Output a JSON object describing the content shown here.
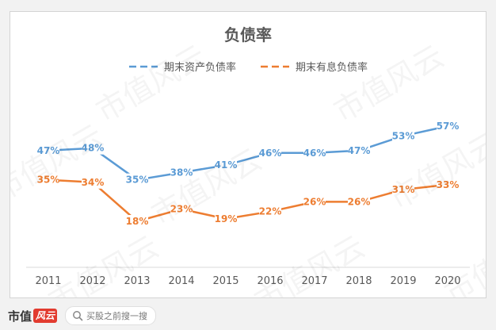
{
  "watermark": "市值风云",
  "footer": {
    "brand": "市值",
    "brand_mark": "风云",
    "search_placeholder": "买股之前搜一搜"
  },
  "colors": {
    "series1": "#5b9bd5",
    "series2": "#ed7d31",
    "title": "#595959",
    "axis_text": "#595959",
    "axis_line": "#d9d9d9"
  },
  "chart_data": {
    "type": "line",
    "title": "负债率",
    "xlabel": "",
    "ylabel": "",
    "categories": [
      "2011",
      "2012",
      "2013",
      "2014",
      "2015",
      "2016",
      "2017",
      "2018",
      "2019",
      "2020"
    ],
    "series": [
      {
        "name": "期末资产负债率",
        "values": [
          47,
          48,
          35,
          38,
          41,
          46,
          46,
          47,
          53,
          57
        ],
        "labels": [
          "47%",
          "48%",
          "35%",
          "38%",
          "41%",
          "46%",
          "46%",
          "47%",
          "53%",
          "57%"
        ]
      },
      {
        "name": "期末有息负债率",
        "values": [
          35,
          34,
          18,
          23,
          19,
          22,
          26,
          26,
          31,
          33
        ],
        "labels": [
          "35%",
          "34%",
          "18%",
          "23%",
          "19%",
          "22%",
          "26%",
          "26%",
          "31%",
          "33%"
        ]
      }
    ],
    "legend_position": "top",
    "grid": false,
    "data_labels": true
  }
}
